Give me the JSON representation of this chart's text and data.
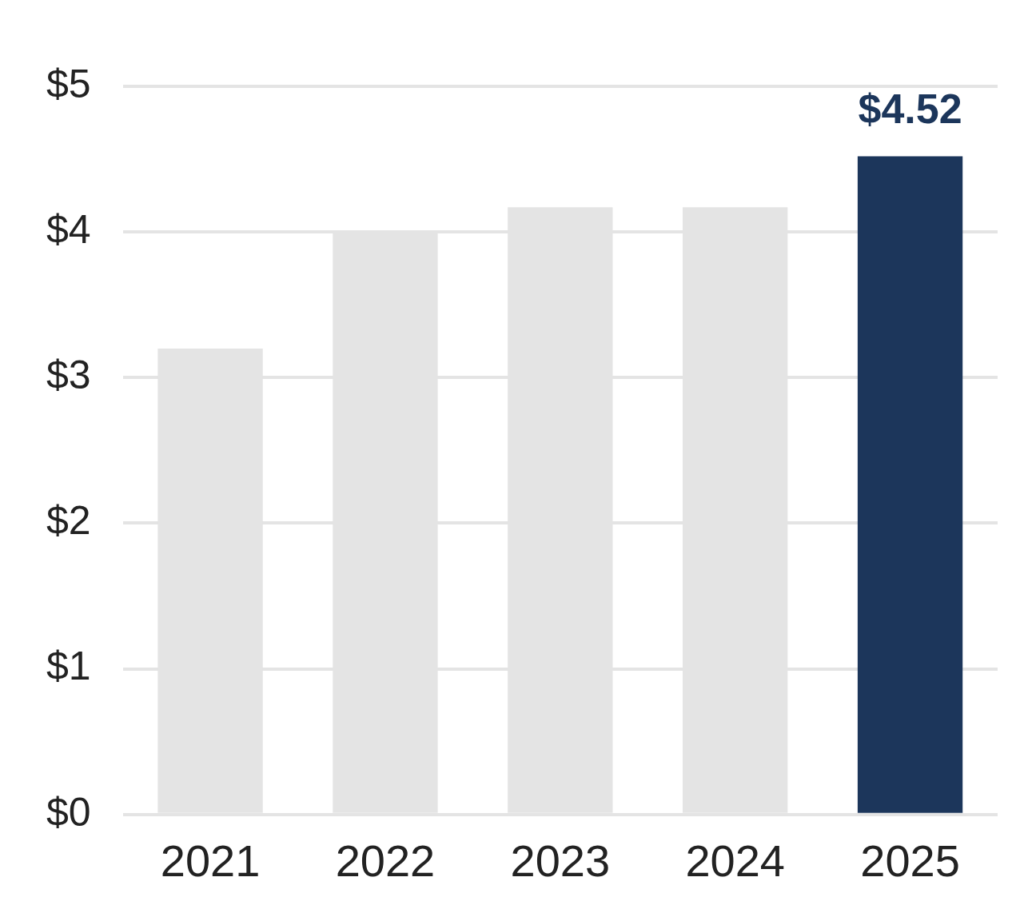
{
  "chart_data": {
    "type": "bar",
    "categories": [
      "2021",
      "2022",
      "2023",
      "2024",
      "2025"
    ],
    "values": [
      3.2,
      4.0,
      4.17,
      4.17,
      4.52
    ],
    "colors": [
      "#e4e4e4",
      "#e4e4e4",
      "#e4e4e4",
      "#e4e4e4",
      "#1c365b"
    ],
    "value_labels": [
      null,
      null,
      null,
      null,
      "$4.52"
    ],
    "ylim": [
      0,
      5
    ],
    "yticks": [
      {
        "value": 0,
        "label": "$0"
      },
      {
        "value": 1,
        "label": "$1"
      },
      {
        "value": 2,
        "label": "$2"
      },
      {
        "value": 3,
        "label": "$3"
      },
      {
        "value": 4,
        "label": "$4"
      },
      {
        "value": 5,
        "label": "$5"
      }
    ],
    "grid": "y",
    "legend": false
  }
}
